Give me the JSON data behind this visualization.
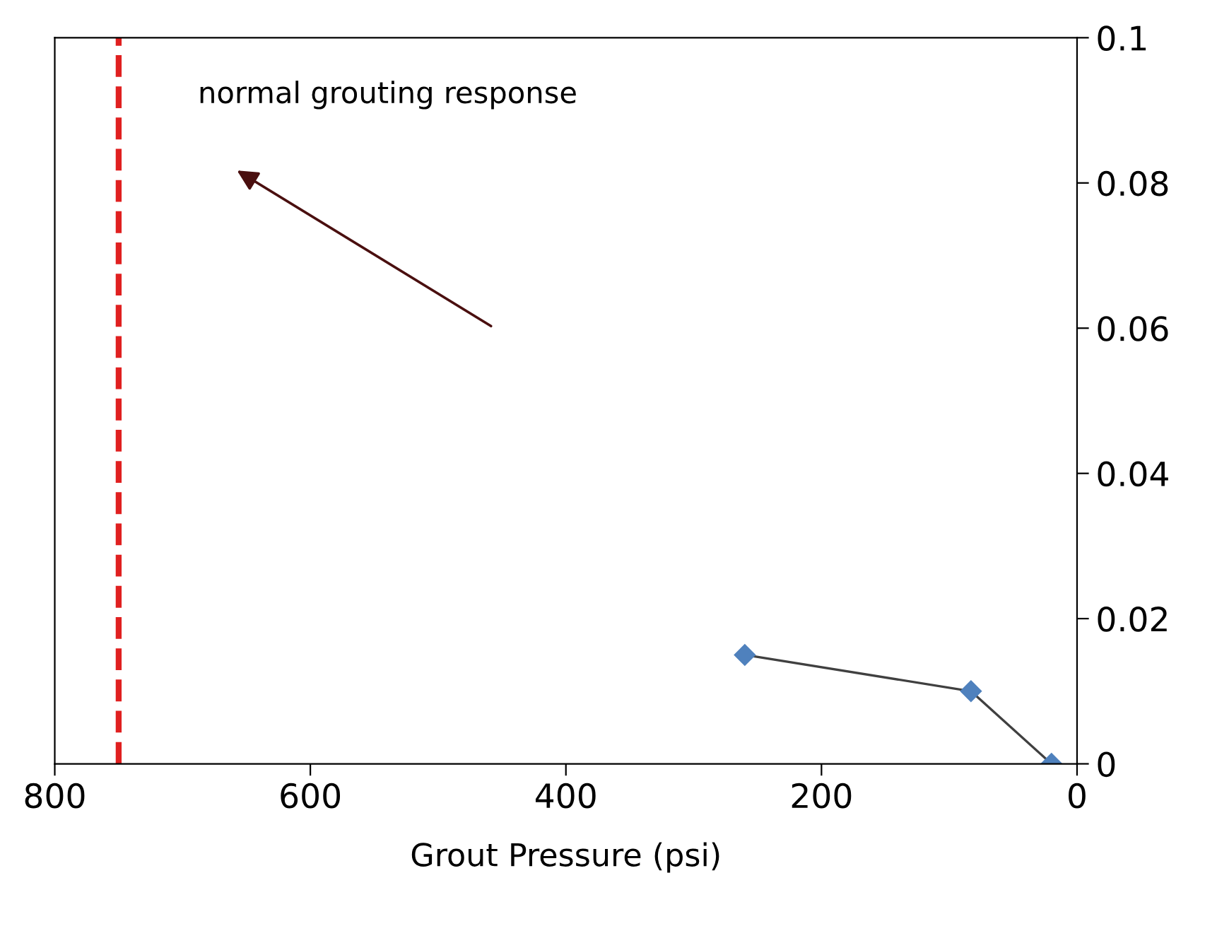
{
  "chart_data": {
    "type": "line",
    "xlabel": "Grout Pressure (psi)",
    "x": [
      260,
      83,
      20
    ],
    "series": [
      {
        "color": "#4f81bd",
        "values": [
          0.015,
          0.01,
          0
        ]
      }
    ],
    "marker": "diamond",
    "line_style": "solid",
    "xlim": [
      800,
      0
    ],
    "xticks": [
      800,
      600,
      400,
      200,
      0
    ],
    "ylim": [
      0,
      0.1
    ],
    "yticks": [
      0,
      0.02,
      0.04,
      0.06,
      0.08,
      0.1
    ],
    "grid": false,
    "legend": false,
    "ref_lines": [
      {
        "axis": "x",
        "value": 750,
        "color": "#e02020",
        "line_style": "dashed"
      }
    ],
    "annotations": [
      "normal grouting response"
    ]
  }
}
